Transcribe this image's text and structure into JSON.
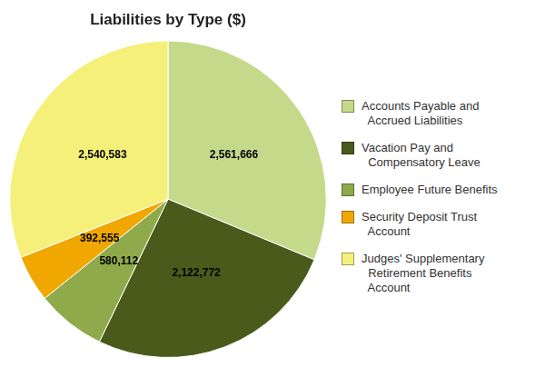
{
  "chart_data": {
    "type": "pie",
    "title": "Liabilities by Type ($)",
    "categories": [
      "Accounts Payable and\n  Accrued Liabilities",
      "Vacation Pay and\n  Compensatory Leave",
      "Employee Future Benefits",
      "Security Deposit Trust\n  Account",
      "Judges' Supplementary\n  Retirement Benefits\n  Account"
    ],
    "values": [
      2561666,
      2122772,
      580112,
      392555,
      2540583
    ],
    "value_labels": [
      "2,561,666",
      "2,122,772",
      "580,112",
      "392,555",
      "2,540,583"
    ],
    "colors": [
      "#c4d98a",
      "#4a5a1a",
      "#8faa4a",
      "#f0a800",
      "#f5f07a"
    ],
    "data_labels": true,
    "legend": "right"
  }
}
